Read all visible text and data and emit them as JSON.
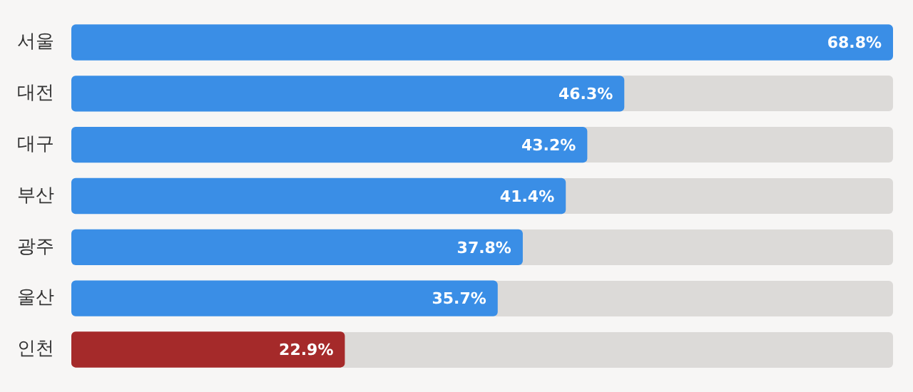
{
  "chart_data": {
    "type": "bar",
    "orientation": "horizontal",
    "categories": [
      "서울",
      "대전",
      "대구",
      "부산",
      "광주",
      "울산",
      "인천"
    ],
    "values": [
      68.8,
      46.3,
      43.2,
      41.4,
      37.8,
      35.7,
      22.9
    ],
    "colors": [
      "#3a8ee6",
      "#3a8ee6",
      "#3a8ee6",
      "#3a8ee6",
      "#3a8ee6",
      "#3a8ee6",
      "#a52a2a"
    ],
    "value_labels": [
      "68.8%",
      "46.3%",
      "43.2%",
      "41.4%",
      "37.8%",
      "35.7%",
      "22.9%"
    ],
    "xlim": [
      0,
      68.8
    ],
    "tick_labels": "y"
  }
}
